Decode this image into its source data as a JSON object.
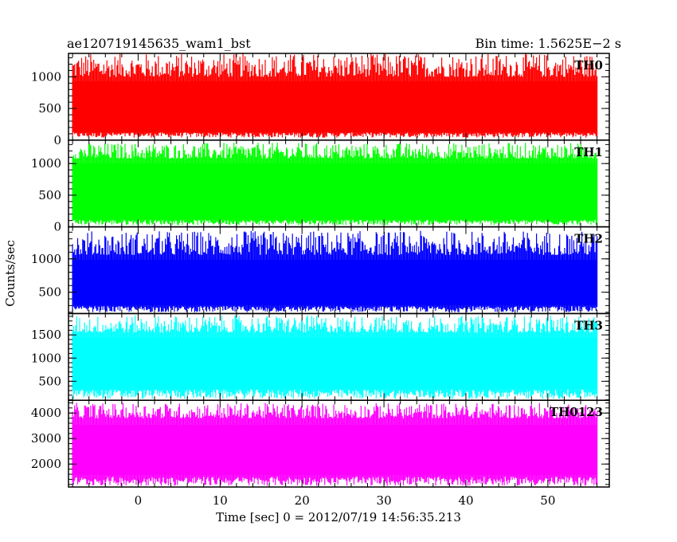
{
  "header": {
    "left_title": "ae120719145635_wam1_bst",
    "right_title": "Bin time: 1.5625E−2 s"
  },
  "chart_data": {
    "type": "line",
    "xlabel": "Time [sec] 0 = 2012/07/19 14:56:35.213",
    "ylabel": "Counts/sec",
    "xlim": [
      -8.5,
      57.5
    ],
    "x_range": [
      -8,
      56
    ],
    "x_ticks": [
      0,
      10,
      20,
      30,
      40,
      50
    ],
    "panels": [
      {
        "name": "TH0",
        "color": "#ff0000",
        "ylim": [
          0,
          1370
        ],
        "yticks": [
          0,
          500,
          1000
        ],
        "base": [
          40,
          120
        ],
        "top": [
          1000,
          1370
        ]
      },
      {
        "name": "TH1",
        "color": "#00ff00",
        "ylim": [
          0,
          1370
        ],
        "yticks": [
          0,
          500,
          1000
        ],
        "base": [
          30,
          110
        ],
        "top": [
          1080,
          1330
        ]
      },
      {
        "name": "TH2",
        "color": "#0000ff",
        "ylim": [
          180,
          1480
        ],
        "yticks": [
          500,
          1000
        ],
        "base": [
          200,
          290
        ],
        "top": [
          1060,
          1420
        ]
      },
      {
        "name": "TH3",
        "color": "#00ffff",
        "ylim": [
          90,
          1960
        ],
        "yticks": [
          500,
          1000,
          1500
        ],
        "base": [
          120,
          320
        ],
        "top": [
          1550,
          1920
        ]
      },
      {
        "name": "TH0123",
        "color": "#ff00ff",
        "ylim": [
          1100,
          4500
        ],
        "yticks": [
          2000,
          3000,
          4000
        ],
        "base": [
          1150,
          1500
        ],
        "top": [
          3800,
          4400
        ]
      }
    ]
  }
}
